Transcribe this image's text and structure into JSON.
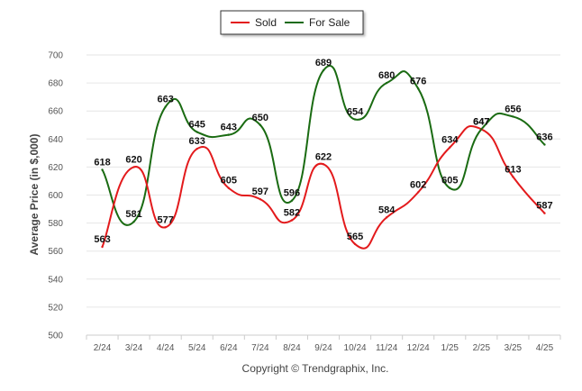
{
  "chart_data": {
    "type": "line",
    "categories": [
      "2/24",
      "3/24",
      "4/24",
      "5/24",
      "6/24",
      "7/24",
      "8/24",
      "9/24",
      "10/24",
      "11/24",
      "12/24",
      "1/25",
      "2/25",
      "3/25",
      "4/25"
    ],
    "series": [
      {
        "name": "Sold",
        "color": "#e31a1c",
        "values": [
          563,
          620,
          577,
          633,
          605,
          597,
          582,
          622,
          565,
          584,
          602,
          634,
          647,
          613,
          587
        ],
        "labels": [
          "563",
          "620",
          "577",
          "633",
          "605",
          "597",
          "582",
          "622",
          "565",
          "584",
          "602",
          "634",
          "647",
          "613",
          "587"
        ]
      },
      {
        "name": "For Sale",
        "color": "#1a6b12",
        "values": [
          618,
          581,
          663,
          645,
          643,
          650,
          596,
          689,
          654,
          680,
          676,
          605,
          647,
          656,
          636
        ],
        "labels": [
          "618",
          "581",
          "663",
          "645",
          "643",
          "650",
          "596",
          "689",
          "654",
          "680",
          "676",
          "605",
          "647",
          "656",
          "636"
        ]
      }
    ],
    "xlabel": "",
    "ylabel": "Average Price (in $,000)",
    "ylim": [
      500,
      700
    ],
    "yticks": [
      "500",
      "520",
      "540",
      "560",
      "580",
      "600",
      "620",
      "640",
      "660",
      "680",
      "700"
    ],
    "ytick_values": [
      500,
      520,
      540,
      560,
      580,
      600,
      620,
      640,
      660,
      680,
      700
    ],
    "grid": true,
    "legend_position": "top-center",
    "credit": "Copyright © Trendgraphix, Inc."
  }
}
